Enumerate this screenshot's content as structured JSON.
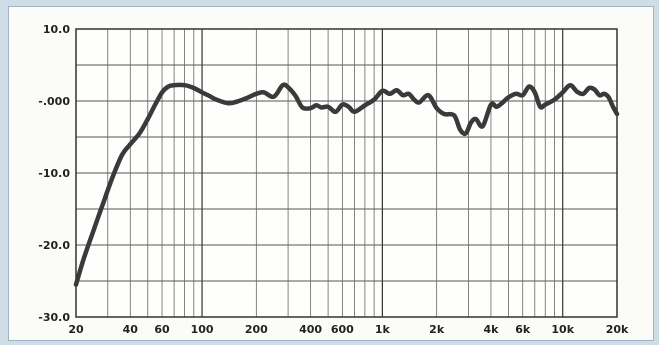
{
  "chart_data": {
    "type": "line",
    "title": "",
    "xlabel": "",
    "ylabel": "",
    "x_scale": "log",
    "xlim": [
      20,
      20000
    ],
    "ylim": [
      -30,
      10
    ],
    "grid": true,
    "y_ticks": [
      {
        "value": 10,
        "label": "10.0"
      },
      {
        "value": 0,
        "label": "-.000"
      },
      {
        "value": -10,
        "label": "-10.0"
      },
      {
        "value": -20,
        "label": "-20.0"
      },
      {
        "value": -30,
        "label": "-30.0"
      }
    ],
    "x_ticks": [
      {
        "value": 20,
        "label": "20"
      },
      {
        "value": 40,
        "label": "40"
      },
      {
        "value": 60,
        "label": "60"
      },
      {
        "value": 100,
        "label": "100"
      },
      {
        "value": 200,
        "label": "200"
      },
      {
        "value": 400,
        "label": "400"
      },
      {
        "value": 600,
        "label": "600"
      },
      {
        "value": 1000,
        "label": "1k"
      },
      {
        "value": 2000,
        "label": "2k"
      },
      {
        "value": 4000,
        "label": "4k"
      },
      {
        "value": 6000,
        "label": "6k"
      },
      {
        "value": 10000,
        "label": "10k"
      },
      {
        "value": 20000,
        "label": "20k"
      }
    ],
    "series": [
      {
        "color": "#3a3a3a",
        "x": [
          20,
          22,
          25,
          28,
          32,
          36,
          40,
          45,
          50,
          55,
          60,
          65,
          70,
          80,
          90,
          100,
          110,
          120,
          140,
          160,
          180,
          200,
          220,
          250,
          280,
          300,
          330,
          360,
          400,
          430,
          460,
          500,
          550,
          600,
          650,
          700,
          800,
          900,
          1000,
          1100,
          1200,
          1300,
          1400,
          1500,
          1600,
          1800,
          2000,
          2200,
          2500,
          2700,
          2900,
          3100,
          3300,
          3600,
          4000,
          4300,
          4600,
          5000,
          5500,
          6000,
          6500,
          7000,
          7500,
          8000,
          9000,
          10000,
          11000,
          12000,
          13000,
          14000,
          15000,
          16000,
          17000,
          18000,
          19000,
          20000
        ],
        "y": [
          -25.5,
          -22,
          -18,
          -14.5,
          -10.5,
          -7.5,
          -6,
          -4.5,
          -2.5,
          -0.5,
          1.2,
          2,
          2.2,
          2.2,
          1.8,
          1.2,
          0.7,
          0.2,
          -0.3,
          0,
          0.5,
          1,
          1.2,
          0.6,
          2.2,
          1.9,
          0.7,
          -0.9,
          -1,
          -0.6,
          -0.9,
          -0.8,
          -1.5,
          -0.5,
          -0.8,
          -1.5,
          -0.6,
          0.2,
          1.4,
          1.0,
          1.5,
          0.8,
          1.0,
          0.2,
          -0.2,
          0.8,
          -1.0,
          -1.8,
          -2.0,
          -4.0,
          -4.5,
          -3.0,
          -2.5,
          -3.5,
          -0.5,
          -0.8,
          -0.3,
          0.5,
          1.0,
          0.8,
          2.0,
          1.2,
          -0.8,
          -0.5,
          0.2,
          1.2,
          2.2,
          1.3,
          1.0,
          1.8,
          1.6,
          0.8,
          1.0,
          0.5,
          -0.8,
          -1.8
        ]
      }
    ]
  }
}
